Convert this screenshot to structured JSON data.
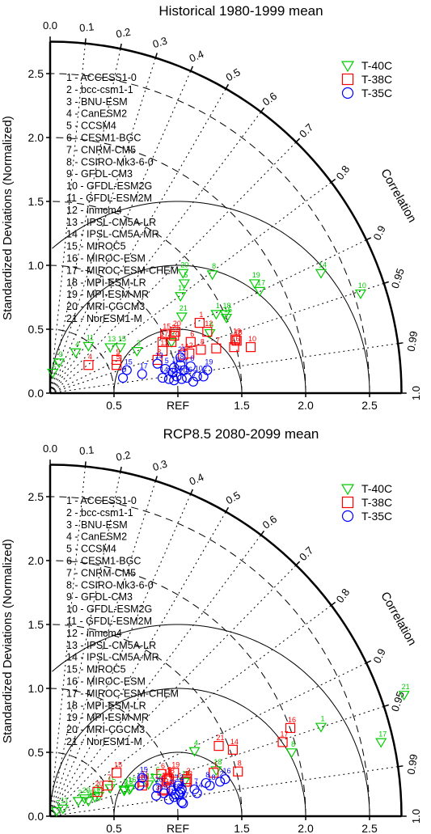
{
  "chart_data": [
    {
      "type": "taylor",
      "title": "Historical 1980-1999 mean",
      "ylabel": "Standardized Deviations (Normalized)",
      "correlation_label": "Correlation",
      "reference_label": "REF",
      "std_range": [
        0,
        2.75
      ],
      "std_ticks": [
        "0.0",
        "0.5",
        "1.0",
        "1.5",
        "2.0",
        "2.5"
      ],
      "x_tick_labels": [
        "0.0",
        "0.5",
        "REF",
        "1.5",
        "2.0",
        "2.5"
      ],
      "correlation_ticks": [
        "0.0",
        "0.1",
        "0.2",
        "0.3",
        "0.4",
        "0.5",
        "0.6",
        "0.7",
        "0.8",
        "0.9",
        "0.95",
        "0.99",
        "1.0"
      ],
      "models": [
        "1 - ACCESS1-0",
        "2 - bcc-csm1-1",
        "3 - BNU-ESM",
        "4 - CanESM2",
        "5 - CCSM4",
        "6 - CESM1-BGC",
        "7 - CNRM-CM5",
        "8 - CSIRO-Mk3-6-0",
        "9 - GFDL-CM3",
        "10 - GFDL-ESM2G",
        "11 - GFDL-ESM2M",
        "12 - inmcm4",
        "13 - IPSL-CM5A-LR",
        "14 - IPSL-CM5A-MR",
        "15 - MIROC5",
        "16 - MIROC-ESM",
        "17 - MIROC-ESM-CHEM",
        "18 - MPI-ESM-LR",
        "19 - MPI-ESM-MR",
        "20 - MRI-CGCM3",
        "21 - NorESM1-M"
      ],
      "legend_position": "top-right",
      "series": [
        {
          "name": "T-40C",
          "marker": "triangle",
          "color": "#00cc00",
          "points": [
            {
              "id": "1",
              "x": 1.3,
              "y": 0.62
            },
            {
              "id": "2",
              "x": 0.02,
              "y": 0.16
            },
            {
              "id": "3",
              "x": 0.68,
              "y": 0.33
            },
            {
              "id": "4",
              "x": 0.2,
              "y": 0.32
            },
            {
              "id": "5",
              "x": 1.05,
              "y": 0.86
            },
            {
              "id": "6",
              "x": 1.25,
              "y": 0.47
            },
            {
              "id": "7",
              "x": 0.95,
              "y": 0.4
            },
            {
              "id": "8",
              "x": 1.27,
              "y": 0.93
            },
            {
              "id": "9",
              "x": 0.07,
              "y": 0.24
            },
            {
              "id": "10",
              "x": 2.43,
              "y": 0.78
            },
            {
              "id": "11",
              "x": 0.3,
              "y": 0.37
            },
            {
              "id": "12",
              "x": 1.02,
              "y": 0.76
            },
            {
              "id": "13",
              "x": 0.47,
              "y": 0.36
            },
            {
              "id": "14",
              "x": 2.12,
              "y": 0.94
            },
            {
              "id": "15",
              "x": 0.55,
              "y": 0.36
            },
            {
              "id": "16",
              "x": 1.38,
              "y": 0.59
            },
            {
              "id": "17",
              "x": 1.64,
              "y": 0.8
            },
            {
              "id": "18",
              "x": 1.37,
              "y": 0.62
            },
            {
              "id": "19",
              "x": 1.6,
              "y": 0.86
            },
            {
              "id": "20",
              "x": 1.04,
              "y": 0.94
            },
            {
              "id": "21",
              "x": 1.03,
              "y": 0.6
            }
          ]
        },
        {
          "name": "T-38C",
          "marker": "square",
          "color": "#ff0000",
          "points": [
            {
              "id": "1",
              "x": 1.17,
              "y": 0.55
            },
            {
              "id": "2",
              "x": 1.09,
              "y": 0.31
            },
            {
              "id": "3",
              "x": 0.84,
              "y": 0.26
            },
            {
              "id": "4",
              "x": 0.3,
              "y": 0.22
            },
            {
              "id": "5",
              "x": 0.52,
              "y": 0.22
            },
            {
              "id": "6",
              "x": 1.1,
              "y": 0.4
            },
            {
              "id": "7",
              "x": 1.3,
              "y": 0.35
            },
            {
              "id": "8",
              "x": 1.18,
              "y": 0.34
            },
            {
              "id": "9",
              "x": 0.52,
              "y": 0.26
            },
            {
              "id": "10",
              "x": 1.57,
              "y": 0.36
            },
            {
              "id": "11",
              "x": 0.88,
              "y": 0.33
            },
            {
              "id": "12",
              "x": 1.23,
              "y": 0.48
            },
            {
              "id": "13",
              "x": 0.95,
              "y": 0.4
            },
            {
              "id": "14",
              "x": 1.04,
              "y": 0.3
            },
            {
              "id": "15",
              "x": 0.9,
              "y": 0.46
            },
            {
              "id": "16",
              "x": 1.44,
              "y": 0.36
            },
            {
              "id": "17",
              "x": 0.88,
              "y": 0.4
            },
            {
              "id": "18",
              "x": 1.46,
              "y": 0.41
            },
            {
              "id": "19",
              "x": 1.45,
              "y": 0.42
            },
            {
              "id": "20",
              "x": 0.98,
              "y": 0.48
            },
            {
              "id": "21",
              "x": 0.97,
              "y": 0.45
            }
          ]
        },
        {
          "name": "T-35C",
          "marker": "circle",
          "color": "#0000ff",
          "points": [
            {
              "id": "1",
              "x": 0.96,
              "y": 0.16
            },
            {
              "id": "2",
              "x": 1.2,
              "y": 0.13
            },
            {
              "id": "3",
              "x": 0.97,
              "y": 0.1
            },
            {
              "id": "4",
              "x": 1.05,
              "y": 0.18
            },
            {
              "id": "5",
              "x": 0.9,
              "y": 0.19
            },
            {
              "id": "6",
              "x": 1.1,
              "y": 0.21
            },
            {
              "id": "7",
              "x": 1.12,
              "y": 0.09
            },
            {
              "id": "8",
              "x": 1.02,
              "y": 0.22
            },
            {
              "id": "9",
              "x": 0.57,
              "y": 0.12
            },
            {
              "id": "10",
              "x": 1.15,
              "y": 0.13
            },
            {
              "id": "11",
              "x": 0.93,
              "y": 0.11
            },
            {
              "id": "12",
              "x": 0.99,
              "y": 0.13
            },
            {
              "id": "13",
              "x": 0.84,
              "y": 0.23
            },
            {
              "id": "14",
              "x": 0.88,
              "y": 0.12
            },
            {
              "id": "15",
              "x": 0.6,
              "y": 0.18
            },
            {
              "id": "16",
              "x": 1.07,
              "y": 0.12
            },
            {
              "id": "17",
              "x": 0.72,
              "y": 0.15
            },
            {
              "id": "18",
              "x": 0.97,
              "y": 0.2
            },
            {
              "id": "19",
              "x": 1.23,
              "y": 0.18
            },
            {
              "id": "20",
              "x": 1.03,
              "y": 0.11
            },
            {
              "id": "21",
              "x": 1.02,
              "y": 0.28
            }
          ]
        }
      ]
    },
    {
      "type": "taylor",
      "title": "RCP8.5 2080-2099 mean",
      "ylabel": "Standardized Deviations (Normalized)",
      "correlation_label": "Correlation",
      "reference_label": "REF",
      "std_range": [
        0,
        2.75
      ],
      "std_ticks": [
        "0.0",
        "0.5",
        "1.0",
        "1.5",
        "2.0",
        "2.5"
      ],
      "x_tick_labels": [
        "0.0",
        "0.5",
        "REF",
        "1.5",
        "2.0",
        "2.5"
      ],
      "correlation_ticks": [
        "0.0",
        "0.1",
        "0.2",
        "0.3",
        "0.4",
        "0.5",
        "0.6",
        "0.7",
        "0.8",
        "0.9",
        "0.95",
        "0.99",
        "1.0"
      ],
      "models": [
        "1 - ACCESS1-0",
        "2 - bcc-csm1-1",
        "3 - BNU-ESM",
        "4 - CanESM2",
        "5 - CCSM4",
        "6 - CESM1-BGC",
        "7 - CNRM-CM5",
        "8 - CSIRO-Mk3-6-0",
        "9 - GFDL-CM3",
        "10 - GFDL-ESM2G",
        "11 - GFDL-ESM2M",
        "12 - inmcm4",
        "13 - IPSL-CM5A-LR",
        "14 - IPSL-CM5A-MR",
        "15 - MIROC5",
        "16 - MIROC-ESM",
        "17 - MIROC-ESM-CHEM",
        "18 - MPI-ESM-LR",
        "19 - MPI-ESM-MR",
        "20 - MRI-CGCM3",
        "21 - NorESM1-M"
      ],
      "legend_position": "top-right",
      "series": [
        {
          "name": "T-40C",
          "marker": "triangle",
          "color": "#00cc00",
          "points": [
            {
              "id": "1",
              "x": 2.12,
              "y": 0.7
            },
            {
              "id": "2",
              "x": 0.22,
              "y": 0.12
            },
            {
              "id": "3",
              "x": 0.58,
              "y": 0.2
            },
            {
              "id": "4",
              "x": 1.13,
              "y": 0.51
            },
            {
              "id": "5",
              "x": 0.62,
              "y": 0.21
            },
            {
              "id": "6",
              "x": 0.83,
              "y": 0.3
            },
            {
              "id": "7",
              "x": 0.05,
              "y": 0.04
            },
            {
              "id": "8",
              "x": 1.89,
              "y": 0.5
            },
            {
              "id": "9",
              "x": 0.58,
              "y": 0.21
            },
            {
              "id": "10",
              "x": 0.3,
              "y": 0.12
            },
            {
              "id": "11",
              "x": 0.1,
              "y": 0.06
            },
            {
              "id": "12",
              "x": 0.77,
              "y": 0.25
            },
            {
              "id": "13",
              "x": 1.05,
              "y": 0.27
            },
            {
              "id": "14",
              "x": 0.38,
              "y": 0.16
            },
            {
              "id": "15",
              "x": 0.47,
              "y": 0.22
            },
            {
              "id": "16",
              "x": 0.63,
              "y": 0.22
            },
            {
              "id": "17",
              "x": 2.59,
              "y": 0.58
            },
            {
              "id": "18",
              "x": 1.3,
              "y": 0.36
            },
            {
              "id": "19",
              "x": 0.35,
              "y": 0.15
            },
            {
              "id": "20",
              "x": 0.27,
              "y": 0.14
            },
            {
              "id": "21",
              "x": 2.77,
              "y": 0.95
            }
          ]
        },
        {
          "name": "T-38C",
          "marker": "square",
          "color": "#ff0000",
          "points": [
            {
              "id": "1",
              "x": 1.28,
              "y": 0.34
            },
            {
              "id": "2",
              "x": 1.07,
              "y": 0.29
            },
            {
              "id": "3",
              "x": 0.9,
              "y": 0.21
            },
            {
              "id": "4",
              "x": 0.88,
              "y": 0.2
            },
            {
              "id": "5",
              "x": 0.92,
              "y": 0.3
            },
            {
              "id": "6",
              "x": 0.87,
              "y": 0.33
            },
            {
              "id": "7",
              "x": 0.45,
              "y": 0.24
            },
            {
              "id": "8",
              "x": 1.47,
              "y": 0.35
            },
            {
              "id": "9",
              "x": 1.06,
              "y": 0.27
            },
            {
              "id": "10",
              "x": 0.72,
              "y": 0.24
            },
            {
              "id": "11",
              "x": 0.73,
              "y": 0.27
            },
            {
              "id": "12",
              "x": 0.91,
              "y": 0.28
            },
            {
              "id": "13",
              "x": 1.07,
              "y": 0.27
            },
            {
              "id": "14",
              "x": 1.43,
              "y": 0.52
            },
            {
              "id": "15",
              "x": 0.52,
              "y": 0.34
            },
            {
              "id": "16",
              "x": 1.88,
              "y": 0.69
            },
            {
              "id": "17",
              "x": 1.82,
              "y": 0.58
            },
            {
              "id": "18",
              "x": 0.93,
              "y": 0.29
            },
            {
              "id": "19",
              "x": 0.97,
              "y": 0.34
            },
            {
              "id": "20",
              "x": 0.37,
              "y": 0.19
            },
            {
              "id": "21",
              "x": 1.32,
              "y": 0.55
            }
          ]
        },
        {
          "name": "T-35C",
          "marker": "circle",
          "color": "#0000ff",
          "points": [
            {
              "id": "1",
              "x": 1.03,
              "y": 0.21
            },
            {
              "id": "2",
              "x": 1.33,
              "y": 0.27
            },
            {
              "id": "3",
              "x": 0.83,
              "y": 0.16
            },
            {
              "id": "4",
              "x": 1.02,
              "y": 0.19
            },
            {
              "id": "5",
              "x": 0.89,
              "y": 0.18
            },
            {
              "id": "6",
              "x": 0.97,
              "y": 0.15
            },
            {
              "id": "7",
              "x": 1.13,
              "y": 0.21
            },
            {
              "id": "8",
              "x": 1.22,
              "y": 0.26
            },
            {
              "id": "9",
              "x": 1.03,
              "y": 0.11
            },
            {
              "id": "10",
              "x": 0.98,
              "y": 0.17
            },
            {
              "id": "11",
              "x": 0.93,
              "y": 0.13
            },
            {
              "id": "12",
              "x": 1.0,
              "y": 0.24
            },
            {
              "id": "13",
              "x": 0.7,
              "y": 0.24
            },
            {
              "id": "14",
              "x": 1.15,
              "y": 0.18
            },
            {
              "id": "15",
              "x": 0.72,
              "y": 0.3
            },
            {
              "id": "16",
              "x": 1.37,
              "y": 0.29
            },
            {
              "id": "17",
              "x": 1.04,
              "y": 0.1
            },
            {
              "id": "18",
              "x": 1.25,
              "y": 0.24
            },
            {
              "id": "19",
              "x": 1.01,
              "y": 0.17
            },
            {
              "id": "20",
              "x": 0.84,
              "y": 0.22
            },
            {
              "id": "21",
              "x": 0.95,
              "y": 0.2
            }
          ]
        }
      ]
    }
  ]
}
